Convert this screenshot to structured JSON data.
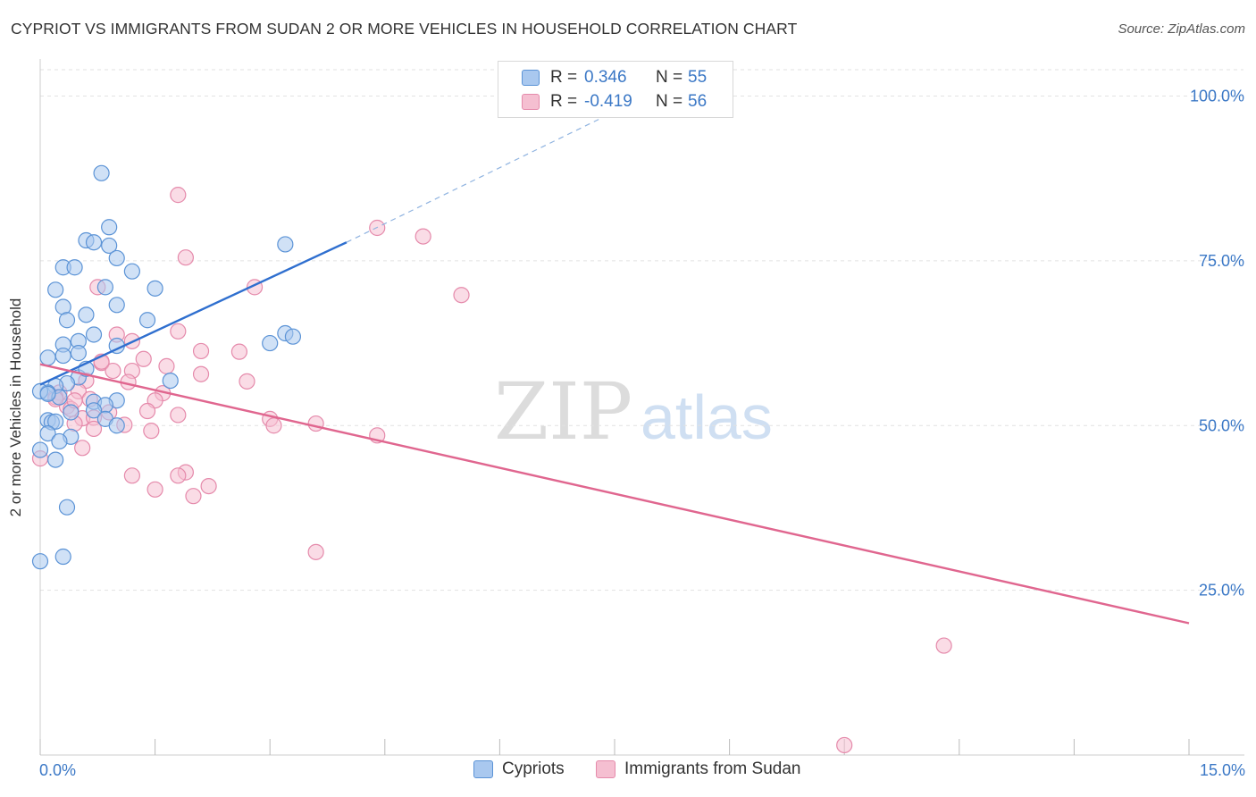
{
  "title": "CYPRIOT VS IMMIGRANTS FROM SUDAN 2 OR MORE VEHICLES IN HOUSEHOLD CORRELATION CHART",
  "source": "Source: ZipAtlas.com",
  "watermark": {
    "zip": "ZIP",
    "atlas": "atlas"
  },
  "legend": {
    "rows": [
      {
        "r_label": "R =",
        "r_value": "0.346",
        "n_label": "N =",
        "n_value": "55"
      },
      {
        "r_label": "R =",
        "r_value": "-0.419",
        "n_label": "N =",
        "n_value": "56"
      }
    ]
  },
  "bottom_legend": [
    "Cypriots",
    "Immigrants from Sudan"
  ],
  "colors": {
    "blue_fill": "#a9c8ef",
    "blue_stroke": "#5b93d6",
    "blue_line": "#2f6fcf",
    "pink_fill": "#f5bfd1",
    "pink_stroke": "#e58aab",
    "pink_line": "#e0668f",
    "axis_text": "#3b78c6",
    "grid": "#e2e2e2"
  },
  "chart_data": {
    "type": "scatter",
    "xlabel": "",
    "ylabel": "2 or more Vehicles in Household",
    "xlim": [
      0,
      15
    ],
    "ylim": [
      0,
      104
    ],
    "x_tick_labels": [
      "0.0%",
      "15.0%"
    ],
    "y_ticks": [
      25,
      50,
      75,
      100
    ],
    "y_tick_labels": [
      "25.0%",
      "50.0%",
      "75.0%",
      "100.0%"
    ],
    "grid": "horizontal dashed",
    "series": [
      {
        "name": "Cypriots",
        "color": "#a9c8ef",
        "points": [
          [
            0.8,
            88.3
          ],
          [
            0.9,
            80.1
          ],
          [
            0.6,
            78.1
          ],
          [
            0.7,
            77.8
          ],
          [
            0.9,
            77.3
          ],
          [
            3.2,
            77.5
          ],
          [
            1.0,
            75.4
          ],
          [
            0.3,
            74.0
          ],
          [
            0.45,
            74.0
          ],
          [
            1.2,
            73.4
          ],
          [
            0.2,
            70.6
          ],
          [
            0.85,
            71.0
          ],
          [
            1.5,
            70.8
          ],
          [
            0.3,
            68.0
          ],
          [
            1.0,
            68.3
          ],
          [
            0.6,
            66.8
          ],
          [
            0.35,
            66.0
          ],
          [
            1.4,
            66.0
          ],
          [
            0.7,
            63.8
          ],
          [
            3.2,
            64.0
          ],
          [
            3.3,
            63.5
          ],
          [
            0.5,
            62.8
          ],
          [
            0.3,
            62.3
          ],
          [
            1.0,
            62.1
          ],
          [
            3.0,
            62.5
          ],
          [
            0.5,
            61.0
          ],
          [
            0.3,
            60.6
          ],
          [
            0.1,
            60.3
          ],
          [
            0.5,
            57.3
          ],
          [
            1.7,
            56.8
          ],
          [
            0.35,
            56.4
          ],
          [
            0.2,
            56.0
          ],
          [
            0.1,
            55.0
          ],
          [
            0.25,
            54.3
          ],
          [
            0.0,
            55.2
          ],
          [
            0.1,
            54.8
          ],
          [
            1.0,
            53.8
          ],
          [
            0.7,
            53.6
          ],
          [
            0.85,
            53.1
          ],
          [
            0.7,
            52.3
          ],
          [
            0.4,
            52.0
          ],
          [
            0.1,
            50.8
          ],
          [
            0.15,
            50.5
          ],
          [
            0.2,
            50.6
          ],
          [
            0.85,
            51.0
          ],
          [
            1.0,
            50.0
          ],
          [
            0.1,
            48.8
          ],
          [
            0.4,
            48.3
          ],
          [
            0.25,
            47.6
          ],
          [
            0.0,
            46.3
          ],
          [
            0.2,
            44.8
          ],
          [
            0.35,
            37.6
          ],
          [
            0.3,
            30.1
          ],
          [
            0.0,
            29.4
          ],
          [
            0.6,
            58.6
          ]
        ],
        "trend": {
          "x0": 0.0,
          "y0": 56.2,
          "x1": 4.0,
          "y1": 77.8,
          "dashed_to": [
            7.3,
            96.5
          ]
        }
      },
      {
        "name": "Immigrants from Sudan",
        "color": "#f5bfd1",
        "points": [
          [
            1.8,
            85.0
          ],
          [
            4.4,
            80.0
          ],
          [
            5.0,
            78.7
          ],
          [
            1.9,
            75.5
          ],
          [
            5.5,
            69.8
          ],
          [
            2.8,
            71.0
          ],
          [
            0.75,
            71.0
          ],
          [
            1.8,
            64.3
          ],
          [
            1.0,
            63.8
          ],
          [
            1.2,
            62.8
          ],
          [
            2.6,
            61.2
          ],
          [
            2.1,
            61.3
          ],
          [
            1.35,
            60.1
          ],
          [
            0.8,
            59.5
          ],
          [
            1.65,
            59.0
          ],
          [
            0.95,
            58.3
          ],
          [
            1.2,
            58.3
          ],
          [
            1.15,
            56.6
          ],
          [
            2.1,
            57.8
          ],
          [
            2.7,
            56.7
          ],
          [
            0.6,
            56.8
          ],
          [
            0.8,
            59.7
          ],
          [
            0.5,
            55.2
          ],
          [
            0.25,
            55.0
          ],
          [
            0.2,
            54.3
          ],
          [
            1.6,
            54.9
          ],
          [
            1.5,
            53.8
          ],
          [
            0.35,
            52.9
          ],
          [
            0.4,
            52.5
          ],
          [
            1.4,
            52.2
          ],
          [
            1.8,
            51.6
          ],
          [
            0.9,
            52.0
          ],
          [
            0.55,
            51.1
          ],
          [
            0.7,
            51.2
          ],
          [
            0.45,
            50.3
          ],
          [
            1.1,
            50.1
          ],
          [
            3.0,
            51.0
          ],
          [
            3.05,
            50.0
          ],
          [
            3.6,
            50.3
          ],
          [
            1.45,
            49.2
          ],
          [
            0.7,
            49.5
          ],
          [
            4.4,
            48.5
          ],
          [
            0.55,
            46.6
          ],
          [
            1.9,
            42.9
          ],
          [
            1.2,
            42.4
          ],
          [
            1.8,
            42.4
          ],
          [
            2.2,
            40.8
          ],
          [
            1.5,
            40.3
          ],
          [
            2.0,
            39.3
          ],
          [
            3.6,
            30.8
          ],
          [
            11.8,
            16.6
          ],
          [
            10.5,
            1.5
          ],
          [
            0.2,
            54.0
          ],
          [
            0.45,
            53.8
          ],
          [
            0.65,
            54.0
          ],
          [
            0.0,
            45.0
          ]
        ],
        "trend": {
          "x0": 0.0,
          "y0": 59.3,
          "x1": 15.0,
          "y1": 20.0
        }
      }
    ]
  }
}
